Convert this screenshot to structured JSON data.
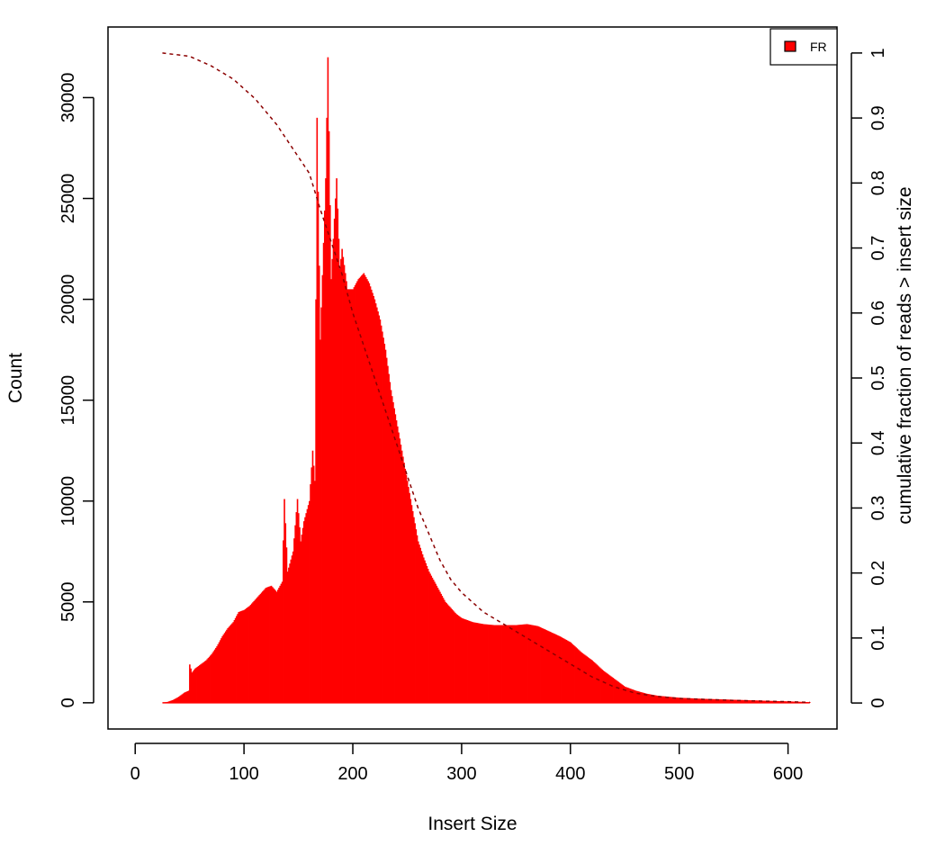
{
  "chart_data": {
    "type": "bar",
    "title": "",
    "xlabel": "Insert Size",
    "ylabel": "Count",
    "y2label": "cumulative fraction of reads > insert size",
    "xlim": [
      -25,
      645
    ],
    "ylim": [
      -1300,
      33500
    ],
    "y2lim": [
      -0.04,
      1.04
    ],
    "x_ticks": [
      0,
      100,
      200,
      300,
      400,
      500,
      600
    ],
    "y_ticks": [
      0,
      5000,
      10000,
      15000,
      20000,
      25000,
      30000
    ],
    "y2_ticks": [
      0,
      0.1,
      0.2,
      0.3,
      0.4,
      0.5,
      0.6,
      0.7,
      0.8,
      0.9,
      1
    ],
    "legend": {
      "position": "top-right",
      "entries": [
        {
          "label": "FR",
          "color": "#ff0000"
        }
      ]
    },
    "series": [
      {
        "name": "FR",
        "kind": "histogram",
        "color": "#ff0000",
        "points": [
          [
            25,
            0
          ],
          [
            30,
            50
          ],
          [
            35,
            150
          ],
          [
            40,
            300
          ],
          [
            45,
            500
          ],
          [
            49,
            600
          ],
          [
            50,
            1900
          ],
          [
            52,
            1500
          ],
          [
            55,
            1700
          ],
          [
            60,
            1900
          ],
          [
            65,
            2100
          ],
          [
            70,
            2400
          ],
          [
            75,
            2800
          ],
          [
            80,
            3300
          ],
          [
            85,
            3700
          ],
          [
            90,
            4000
          ],
          [
            95,
            4500
          ],
          [
            100,
            4600
          ],
          [
            105,
            4800
          ],
          [
            110,
            5100
          ],
          [
            115,
            5400
          ],
          [
            120,
            5700
          ],
          [
            125,
            5800
          ],
          [
            130,
            5500
          ],
          [
            135,
            6000
          ],
          [
            137,
            10100
          ],
          [
            140,
            6500
          ],
          [
            145,
            7500
          ],
          [
            149,
            10100
          ],
          [
            152,
            8000
          ],
          [
            155,
            9000
          ],
          [
            160,
            10000
          ],
          [
            163,
            12500
          ],
          [
            165,
            11000
          ],
          [
            167,
            29000
          ],
          [
            170,
            18000
          ],
          [
            175,
            26000
          ],
          [
            177,
            32000
          ],
          [
            180,
            21000
          ],
          [
            185,
            26000
          ],
          [
            188,
            21500
          ],
          [
            190,
            22500
          ],
          [
            195,
            20500
          ],
          [
            200,
            20500
          ],
          [
            205,
            21000
          ],
          [
            210,
            21300
          ],
          [
            215,
            20800
          ],
          [
            220,
            20000
          ],
          [
            225,
            19000
          ],
          [
            230,
            17500
          ],
          [
            235,
            15500
          ],
          [
            240,
            14000
          ],
          [
            245,
            12500
          ],
          [
            250,
            11000
          ],
          [
            255,
            9500
          ],
          [
            260,
            8000
          ],
          [
            265,
            7200
          ],
          [
            270,
            6500
          ],
          [
            275,
            6000
          ],
          [
            280,
            5500
          ],
          [
            285,
            5000
          ],
          [
            290,
            4700
          ],
          [
            295,
            4400
          ],
          [
            300,
            4200
          ],
          [
            305,
            4100
          ],
          [
            310,
            4000
          ],
          [
            320,
            3900
          ],
          [
            330,
            3850
          ],
          [
            340,
            3850
          ],
          [
            350,
            3850
          ],
          [
            360,
            3900
          ],
          [
            370,
            3800
          ],
          [
            380,
            3550
          ],
          [
            390,
            3300
          ],
          [
            400,
            3000
          ],
          [
            410,
            2500
          ],
          [
            420,
            2100
          ],
          [
            430,
            1600
          ],
          [
            440,
            1200
          ],
          [
            450,
            800
          ],
          [
            460,
            600
          ],
          [
            470,
            450
          ],
          [
            480,
            350
          ],
          [
            490,
            300
          ],
          [
            500,
            250
          ],
          [
            520,
            200
          ],
          [
            550,
            150
          ],
          [
            580,
            100
          ],
          [
            600,
            70
          ],
          [
            620,
            30
          ]
        ]
      },
      {
        "name": "cumulative fraction of reads > insert size",
        "kind": "line",
        "color": "#8b0000",
        "style": "dashed",
        "axis": "right",
        "points": [
          [
            25,
            1.0
          ],
          [
            50,
            0.995
          ],
          [
            70,
            0.98
          ],
          [
            90,
            0.96
          ],
          [
            110,
            0.93
          ],
          [
            130,
            0.89
          ],
          [
            150,
            0.84
          ],
          [
            160,
            0.815
          ],
          [
            170,
            0.76
          ],
          [
            180,
            0.71
          ],
          [
            190,
            0.66
          ],
          [
            200,
            0.6
          ],
          [
            210,
            0.55
          ],
          [
            220,
            0.5
          ],
          [
            230,
            0.45
          ],
          [
            240,
            0.4
          ],
          [
            250,
            0.35
          ],
          [
            260,
            0.3
          ],
          [
            270,
            0.26
          ],
          [
            280,
            0.22
          ],
          [
            290,
            0.19
          ],
          [
            300,
            0.17
          ],
          [
            320,
            0.14
          ],
          [
            340,
            0.12
          ],
          [
            360,
            0.1
          ],
          [
            380,
            0.08
          ],
          [
            400,
            0.06
          ],
          [
            420,
            0.04
          ],
          [
            440,
            0.025
          ],
          [
            460,
            0.015
          ],
          [
            480,
            0.01
          ],
          [
            500,
            0.007
          ],
          [
            550,
            0.004
          ],
          [
            600,
            0.002
          ],
          [
            620,
            0.001
          ]
        ]
      }
    ]
  }
}
